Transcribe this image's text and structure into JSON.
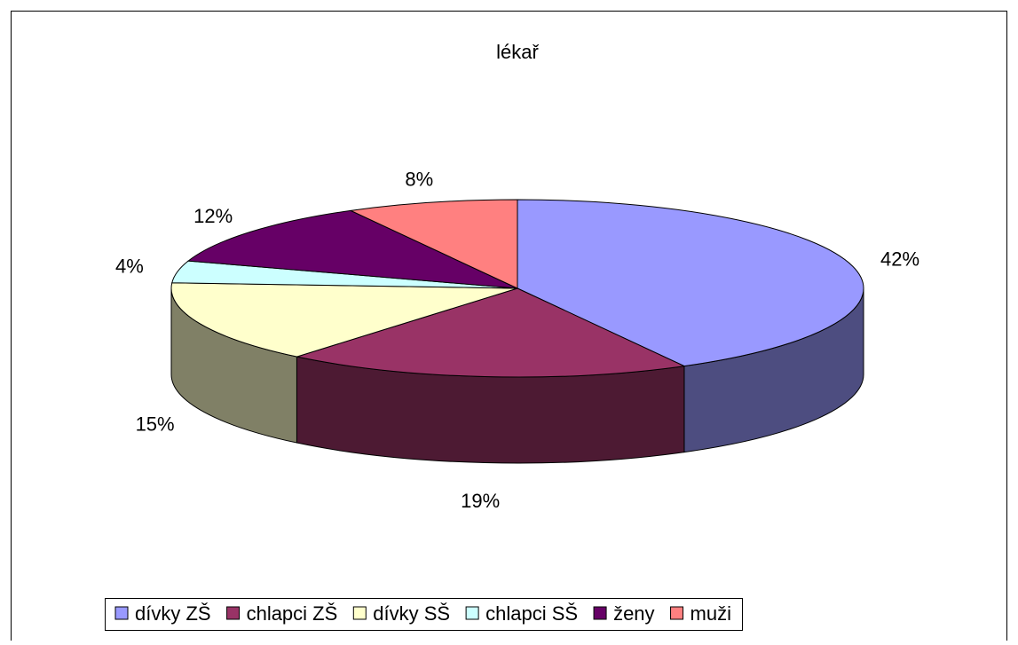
{
  "chart_data": {
    "type": "pie",
    "title": "lékař",
    "categories": [
      "dívky ZŠ",
      "chlapci ZŠ",
      "dívky SŠ",
      "chlapci SŠ",
      "ženy",
      "muži"
    ],
    "values": [
      42,
      19,
      15,
      4,
      12,
      8
    ],
    "value_labels": [
      "42%",
      "19%",
      "15%",
      "4%",
      "12%",
      "8%"
    ],
    "colors": [
      "#9999ff",
      "#993366",
      "#ffffcc",
      "#ccffff",
      "#660066",
      "#ff8080"
    ],
    "legend": "bottom"
  }
}
